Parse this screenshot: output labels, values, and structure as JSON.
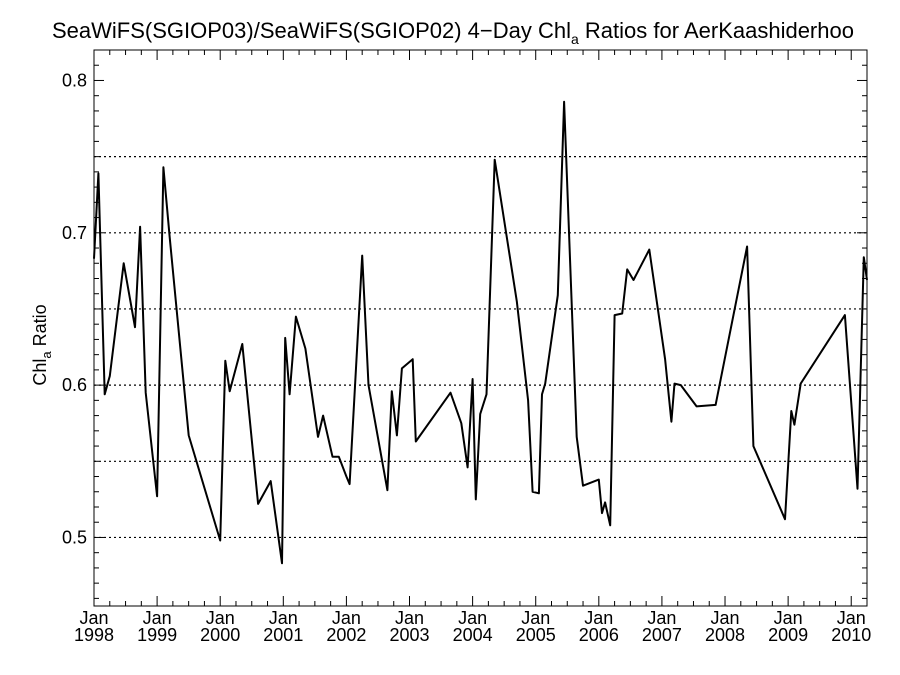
{
  "chart_data": {
    "type": "line",
    "title_main": "SeaWiFS(SGIOP03)/SeaWiFS(SGIOP02) 4−Day Chl",
    "title_sub": "a",
    "title_rest": " Ratios for AerKaashiderhoo",
    "ylabel_main": "Chl",
    "ylabel_sub": "a",
    "ylabel_rest": " Ratio",
    "xlim": [
      1998.0,
      2010.25
    ],
    "ylim": [
      0.455,
      0.82
    ],
    "yticks": [
      {
        "value": 0.5,
        "label": "0.5"
      },
      {
        "value": 0.6,
        "label": "0.6"
      },
      {
        "value": 0.7,
        "label": "0.7"
      },
      {
        "value": 0.8,
        "label": "0.8"
      }
    ],
    "gridlines": [
      0.5,
      0.55,
      0.6,
      0.65,
      0.7,
      0.75
    ],
    "xticks": [
      {
        "value": 1998,
        "month": "Jan",
        "year": "1998"
      },
      {
        "value": 1999,
        "month": "Jan",
        "year": "1999"
      },
      {
        "value": 2000,
        "month": "Jan",
        "year": "2000"
      },
      {
        "value": 2001,
        "month": "Jan",
        "year": "2001"
      },
      {
        "value": 2002,
        "month": "Jan",
        "year": "2002"
      },
      {
        "value": 2003,
        "month": "Jan",
        "year": "2003"
      },
      {
        "value": 2004,
        "month": "Jan",
        "year": "2004"
      },
      {
        "value": 2005,
        "month": "Jan",
        "year": "2005"
      },
      {
        "value": 2006,
        "month": "Jan",
        "year": "2006"
      },
      {
        "value": 2007,
        "month": "Jan",
        "year": "2007"
      },
      {
        "value": 2008,
        "month": "Jan",
        "year": "2008"
      },
      {
        "value": 2009,
        "month": "Jan",
        "year": "2009"
      },
      {
        "value": 2010,
        "month": "Jan",
        "year": "2010"
      }
    ],
    "grid": "horizontal dotted",
    "line_color": "#000000",
    "x": [
      1998.0,
      1998.07,
      1998.17,
      1998.25,
      1998.47,
      1998.65,
      1998.73,
      1998.82,
      1999.0,
      1999.1,
      1999.2,
      1999.5,
      2000.0,
      2000.08,
      2000.15,
      2000.35,
      2000.6,
      2000.8,
      2000.98,
      2001.03,
      2001.1,
      2001.2,
      2001.35,
      2001.55,
      2001.63,
      2001.78,
      2001.88,
      2002.0,
      2002.05,
      2002.25,
      2002.35,
      2002.65,
      2002.72,
      2002.8,
      2002.88,
      2003.05,
      2003.1,
      2003.65,
      2003.82,
      2003.92,
      2004.0,
      2004.05,
      2004.12,
      2004.22,
      2004.35,
      2004.7,
      2004.88,
      2004.95,
      2005.05,
      2005.1,
      2005.15,
      2005.35,
      2005.45,
      2005.65,
      2005.75,
      2006.0,
      2006.05,
      2006.1,
      2006.18,
      2006.25,
      2006.37,
      2006.45,
      2006.55,
      2006.8,
      2007.05,
      2007.15,
      2007.2,
      2007.3,
      2007.55,
      2007.85,
      2008.35,
      2008.45,
      2008.95,
      2009.05,
      2009.1,
      2009.2,
      2009.9,
      2010.1,
      2010.2,
      2010.25
    ],
    "values": [
      0.683,
      0.739,
      0.594,
      0.606,
      0.68,
      0.638,
      0.704,
      0.595,
      0.527,
      0.743,
      0.697,
      0.567,
      0.498,
      0.616,
      0.596,
      0.627,
      0.522,
      0.537,
      0.483,
      0.631,
      0.594,
      0.645,
      0.624,
      0.566,
      0.58,
      0.553,
      0.553,
      0.54,
      0.535,
      0.685,
      0.6,
      0.531,
      0.596,
      0.567,
      0.611,
      0.617,
      0.563,
      0.595,
      0.575,
      0.546,
      0.604,
      0.525,
      0.581,
      0.594,
      0.748,
      0.655,
      0.59,
      0.53,
      0.529,
      0.594,
      0.601,
      0.659,
      0.786,
      0.566,
      0.534,
      0.538,
      0.516,
      0.523,
      0.508,
      0.646,
      0.647,
      0.676,
      0.669,
      0.689,
      0.617,
      0.576,
      0.601,
      0.6,
      0.586,
      0.587,
      0.691,
      0.56,
      0.512,
      0.583,
      0.574,
      0.601,
      0.646,
      0.532,
      0.684,
      0.669
    ]
  }
}
